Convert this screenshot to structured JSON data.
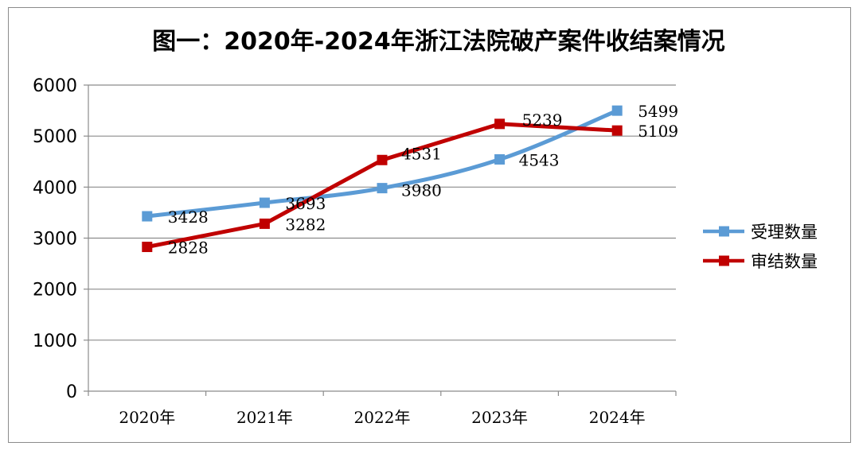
{
  "chart_data": {
    "type": "line",
    "title": "图一：2020年-2024年浙江法院破产案件收结案情况",
    "categories": [
      "2020年",
      "2021年",
      "2022年",
      "2023年",
      "2024年"
    ],
    "ylim": [
      0,
      6000
    ],
    "yticks": [
      0,
      1000,
      2000,
      3000,
      4000,
      5000,
      6000
    ],
    "grid": true,
    "legend_position": "right",
    "series": [
      {
        "name": "受理数量",
        "color": "#5b9bd5",
        "values": [
          3428,
          3693,
          3980,
          4543,
          5499
        ],
        "smooth": true
      },
      {
        "name": "审结数量",
        "color": "#c00000",
        "values": [
          2828,
          3282,
          4531,
          5239,
          5109
        ],
        "smooth": false
      }
    ]
  }
}
